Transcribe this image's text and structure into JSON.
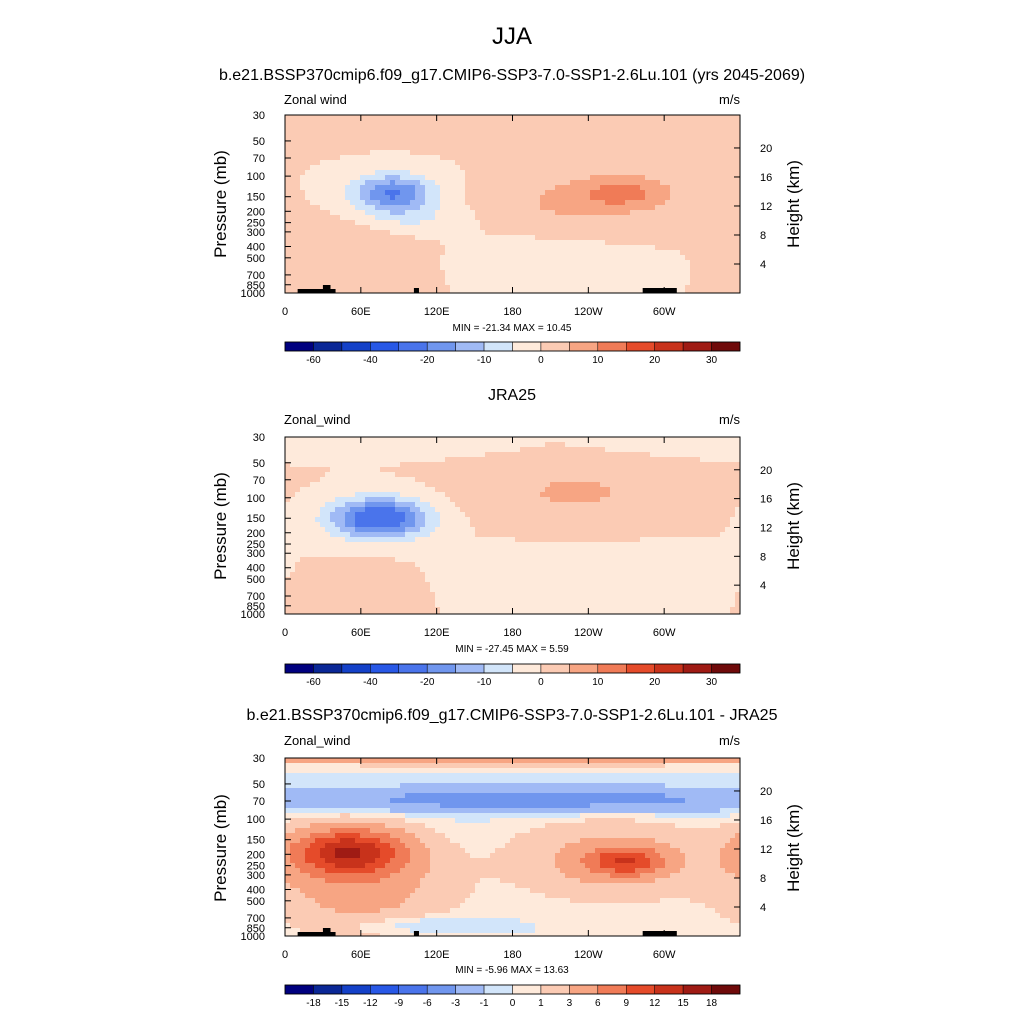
{
  "figure": {
    "title": "JJA"
  },
  "chart_data": [
    {
      "type": "heatmap",
      "title": "b.e21.BSSP370cmip6.f09_g17.CMIP6-SSP3-7.0-SSP1-2.6Lu.101 (yrs 2045-2069)",
      "variable": "Zonal wind",
      "units": "m/s",
      "ylabel": "Pressure (mb)",
      "y2label": "Height (km)",
      "x_ticks": [
        "0",
        "60E",
        "120E",
        "180",
        "120W",
        "60W"
      ],
      "x_tick_lon": [
        0,
        60,
        120,
        180,
        240,
        300
      ],
      "xlim": [
        0,
        360
      ],
      "y_ticks": [
        30,
        50,
        70,
        100,
        150,
        200,
        250,
        300,
        400,
        500,
        700,
        850,
        1000
      ],
      "ylim": [
        1000,
        30
      ],
      "y2_ticks": [
        20,
        16,
        12,
        8,
        4
      ],
      "min": -21.34,
      "max": 10.45,
      "stats_text": "MIN = -21.34  MAX =  10.45",
      "colorbar_levels": [
        -70,
        -60,
        -50,
        -40,
        -30,
        -20,
        -15,
        -10,
        -5,
        0,
        5,
        10,
        15,
        20,
        25,
        30,
        35
      ],
      "colorbar_labels": [
        "-60",
        "-40",
        "-20",
        "-10",
        "0",
        "10",
        "20",
        "30"
      ],
      "colorbar_label_index": [
        1,
        3,
        5,
        7,
        9,
        11,
        13,
        15
      ],
      "features": [
        {
          "lon": 85,
          "p": 140,
          "value": -21.3,
          "rlon": 32,
          "rlogp": 0.16
        },
        {
          "lon": 100,
          "p": 230,
          "value": -5,
          "rlon": 40,
          "rlogp": 0.12
        },
        {
          "lon": 270,
          "p": 140,
          "value": 10.5,
          "rlon": 40,
          "rlogp": 0.16
        },
        {
          "lon": 215,
          "p": 170,
          "value": 5,
          "rlon": 55,
          "rlogp": 0.25
        },
        {
          "lon": 60,
          "p": 600,
          "value": 4,
          "rlon": 40,
          "rlogp": 0.45
        },
        {
          "lon": 200,
          "p": 550,
          "value": -3,
          "rlon": 50,
          "rlogp": 0.22
        },
        {
          "lon": 200,
          "p": 40,
          "value": 0.5,
          "rlon": 180,
          "rlogp": 0.2
        }
      ]
    },
    {
      "type": "heatmap",
      "title": "JRA25",
      "variable": "Zonal_wind",
      "units": "m/s",
      "ylabel": "Pressure (mb)",
      "y2label": "Height (km)",
      "x_ticks": [
        "0",
        "60E",
        "120E",
        "180",
        "120W",
        "60W"
      ],
      "x_tick_lon": [
        0,
        60,
        120,
        180,
        240,
        300
      ],
      "xlim": [
        0,
        360
      ],
      "y_ticks": [
        30,
        50,
        70,
        100,
        150,
        200,
        250,
        300,
        400,
        500,
        700,
        850,
        1000
      ],
      "ylim": [
        1000,
        30
      ],
      "y2_ticks": [
        20,
        16,
        12,
        8,
        4
      ],
      "min": -27.45,
      "max": 5.59,
      "stats_text": "MIN = -27.45  MAX =   5.59",
      "colorbar_levels": [
        -70,
        -60,
        -50,
        -40,
        -30,
        -20,
        -15,
        -10,
        -5,
        0,
        5,
        10,
        15,
        20,
        25,
        30,
        35
      ],
      "colorbar_labels": [
        "-60",
        "-40",
        "-20",
        "-10",
        "0",
        "10",
        "20",
        "30"
      ],
      "colorbar_label_index": [
        1,
        3,
        5,
        7,
        9,
        11,
        13,
        15
      ],
      "features": [
        {
          "lon": 75,
          "p": 150,
          "value": -27.5,
          "rlon": 38,
          "rlogp": 0.17
        },
        {
          "lon": 30,
          "p": 35,
          "value": -3,
          "rlon": 150,
          "rlogp": 0.1
        },
        {
          "lon": 230,
          "p": 90,
          "value": 5.6,
          "rlon": 80,
          "rlogp": 0.3
        },
        {
          "lon": 230,
          "p": 500,
          "value": -3,
          "rlon": 90,
          "rlogp": 0.3
        },
        {
          "lon": 60,
          "p": 700,
          "value": 4,
          "rlon": 40,
          "rlogp": 0.25
        }
      ]
    },
    {
      "type": "heatmap",
      "title": "b.e21.BSSP370cmip6.f09_g17.CMIP6-SSP3-7.0-SSP1-2.6Lu.101 - JRA25",
      "variable": "Zonal_wind",
      "units": "m/s",
      "ylabel": "Pressure (mb)",
      "y2label": "Height (km)",
      "x_ticks": [
        "0",
        "60E",
        "120E",
        "180",
        "120W",
        "60W"
      ],
      "x_tick_lon": [
        0,
        60,
        120,
        180,
        240,
        300
      ],
      "xlim": [
        0,
        360
      ],
      "y_ticks": [
        30,
        50,
        70,
        100,
        150,
        200,
        250,
        300,
        400,
        500,
        700,
        850,
        1000
      ],
      "ylim": [
        1000,
        30
      ],
      "y2_ticks": [
        20,
        16,
        12,
        8,
        4
      ],
      "min": -5.96,
      "max": 13.63,
      "stats_text": "MIN =  -5.96  MAX =  13.63",
      "colorbar_levels": [
        -21,
        -18,
        -15,
        -12,
        -9,
        -6,
        -3,
        -1,
        0,
        1,
        3,
        6,
        9,
        12,
        15,
        18,
        21
      ],
      "colorbar_labels": [
        "-18",
        "-15",
        "-12",
        "-9",
        "-6",
        "-3",
        "-1",
        "0",
        "1",
        "3",
        "6",
        "9",
        "12",
        "15",
        "18"
      ],
      "colorbar_label_index": [
        1,
        2,
        3,
        4,
        5,
        6,
        7,
        8,
        9,
        10,
        11,
        12,
        13,
        14,
        15
      ],
      "features": [
        {
          "lon": 50,
          "p": 190,
          "value": 13.6,
          "rlon": 45,
          "rlogp": 0.2
        },
        {
          "lon": 270,
          "p": 230,
          "value": 9,
          "rlon": 30,
          "rlogp": 0.12
        },
        {
          "lon": 255,
          "p": 220,
          "value": 4,
          "rlon": 70,
          "rlogp": 0.32
        },
        {
          "lon": 60,
          "p": 400,
          "value": 4,
          "rlon": 70,
          "rlogp": 0.4
        },
        {
          "lon": 200,
          "p": 68,
          "value": -4.5,
          "rlon": 200,
          "rlogp": 0.11
        },
        {
          "lon": 180,
          "p": 31,
          "value": 6,
          "rlon": 250,
          "rlogp": 0.04
        },
        {
          "lon": 100,
          "p": 800,
          "value": -2,
          "rlon": 60,
          "rlogp": 0.08
        }
      ]
    }
  ],
  "colors": {
    "palette": [
      "#00007f",
      "#0a2796",
      "#1441c8",
      "#2858e6",
      "#4a74eb",
      "#7096ee",
      "#a0baf5",
      "#d2e5fa",
      "#feeadb",
      "#fbcbb4",
      "#f7a583",
      "#f07b57",
      "#e54b2a",
      "#c8321b",
      "#9f1b14",
      "#6f0a0a"
    ],
    "terrain": "#000000"
  }
}
